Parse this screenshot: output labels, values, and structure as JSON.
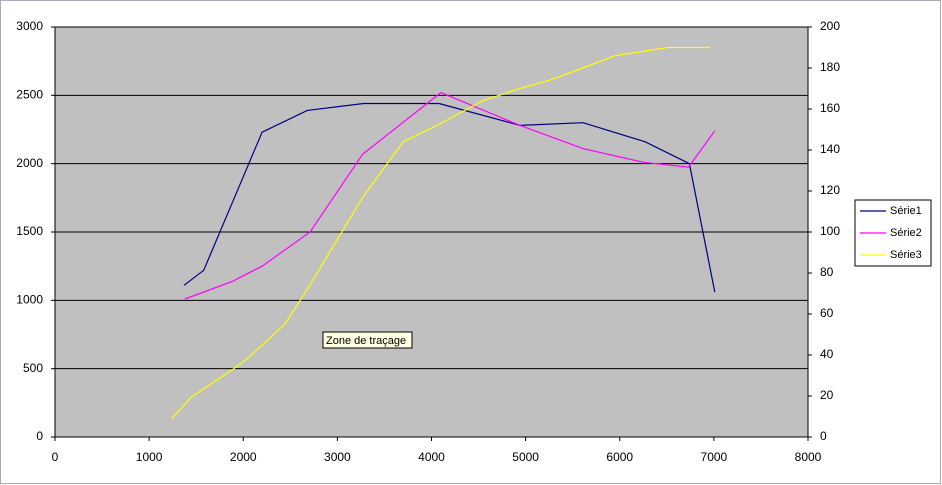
{
  "chart_data": {
    "type": "line",
    "xlim": [
      0,
      8000
    ],
    "xticks": [
      0,
      1000,
      2000,
      3000,
      4000,
      5000,
      6000,
      7000,
      8000
    ],
    "ylim": [
      0,
      3000
    ],
    "yticks": [
      0,
      500,
      1000,
      1500,
      2000,
      2500,
      3000
    ],
    "y2lim": [
      0,
      200
    ],
    "y2ticks": [
      0,
      20,
      40,
      60,
      80,
      100,
      120,
      140,
      160,
      180,
      200
    ],
    "grid": true,
    "background": "#c0c0c0",
    "legend": "right",
    "annotation": "Zone de traçage",
    "series": [
      {
        "name": "Série1",
        "color": "#000080",
        "x": [
          1370,
          1580,
          2200,
          2680,
          3280,
          4080,
          4940,
          5610,
          6270,
          6740,
          7010
        ],
        "values": [
          1110,
          1220,
          2230,
          2390,
          2440,
          2440,
          2280,
          2300,
          2160,
          2000,
          1060
        ]
      },
      {
        "name": "Série2",
        "color": "#ff00ff",
        "x": [
          1380,
          1890,
          2200,
          2710,
          3270,
          4100,
          4940,
          5610,
          6250,
          6730,
          7010
        ],
        "values": [
          1010,
          1140,
          1250,
          1500,
          2070,
          2520,
          2280,
          2110,
          2010,
          1975,
          2240
        ]
      },
      {
        "name": "Série3",
        "color": "#ffff00",
        "axis": "y2",
        "x": [
          1240,
          1450,
          1890,
          2050,
          2440,
          2680,
          3270,
          3700,
          4100,
          4540,
          4940,
          5250,
          5610,
          5950,
          6510,
          6960
        ],
        "values": [
          9,
          19.5,
          33,
          38.5,
          55,
          72,
          117,
          144,
          153,
          164,
          170,
          174,
          180,
          186,
          190,
          190
        ]
      }
    ]
  }
}
